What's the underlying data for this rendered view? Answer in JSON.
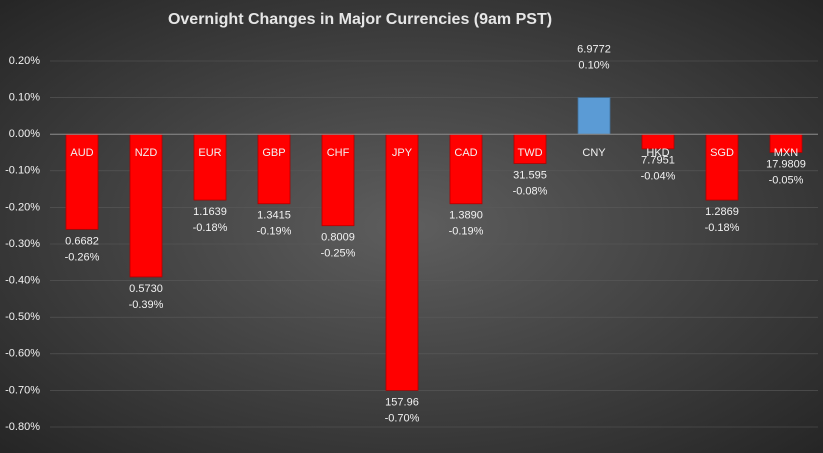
{
  "chart_data": {
    "type": "bar",
    "title": "Overnight Changes in Major Currencies (9am PST)",
    "categories": [
      "AUD",
      "NZD",
      "EUR",
      "GBP",
      "CHF",
      "JPY",
      "CAD",
      "TWD",
      "CNY",
      "HKD",
      "SGD",
      "MXN"
    ],
    "values": [
      -0.26,
      -0.39,
      -0.18,
      -0.19,
      -0.25,
      -0.7,
      -0.19,
      -0.08,
      0.1,
      -0.04,
      -0.18,
      -0.05
    ],
    "value_labels": [
      "-0.26%",
      "-0.39%",
      "-0.18%",
      "-0.19%",
      "-0.25%",
      "-0.70%",
      "-0.19%",
      "-0.08%",
      "0.10%",
      "-0.04%",
      "-0.18%",
      "-0.05%"
    ],
    "rate_labels": [
      "0.6682",
      "0.5730",
      "1.1639",
      "1.3415",
      "0.8009",
      "157.96",
      "1.3890",
      "31.595",
      "6.9772",
      "7.7951",
      "1.2869",
      "17.9809"
    ],
    "colors": [
      "#ff0000",
      "#ff0000",
      "#ff0000",
      "#ff0000",
      "#ff0000",
      "#ff0000",
      "#ff0000",
      "#ff0000",
      "#5b9bd5",
      "#ff0000",
      "#ff0000",
      "#ff0000"
    ],
    "ylim": [
      -0.8,
      0.2
    ],
    "yticks": [
      {
        "value": 0.2,
        "label": "0.20%"
      },
      {
        "value": 0.1,
        "label": "0.10%"
      },
      {
        "value": 0,
        "label": "0.00%"
      },
      {
        "value": -0.1,
        "label": "-0.10%"
      },
      {
        "value": -0.2,
        "label": "-0.20%"
      },
      {
        "value": -0.3,
        "label": "-0.30%"
      },
      {
        "value": -0.4,
        "label": "-0.40%"
      },
      {
        "value": -0.5,
        "label": "-0.50%"
      },
      {
        "value": -0.6,
        "label": "-0.60%"
      },
      {
        "value": -0.7,
        "label": "-0.70%"
      },
      {
        "value": -0.8,
        "label": "-0.80%"
      }
    ],
    "grid": true
  }
}
